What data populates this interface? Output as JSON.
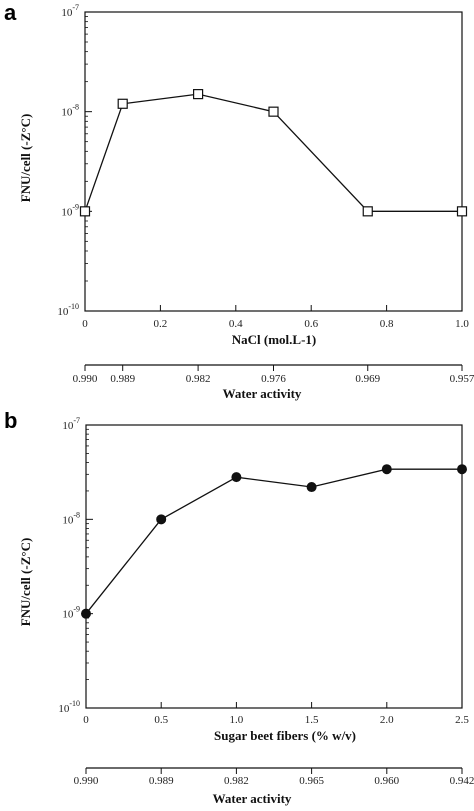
{
  "chart_data": [
    {
      "panel": "a",
      "type": "line",
      "marker": "open-square",
      "ylabel": "FNU/cell (-Z°C)",
      "xlabel": "NaCl (mol.L-1)",
      "yscale": "log",
      "ylim": [
        1e-10,
        1e-07
      ],
      "y_ticks": [
        "-7",
        "-8",
        "-9",
        "-10"
      ],
      "xlim": [
        0,
        1.0
      ],
      "x_ticks": [
        "0",
        "0.2",
        "0.4",
        "0.6",
        "0.8",
        "1.0"
      ],
      "x": [
        0.0,
        0.1,
        0.3,
        0.5,
        0.75,
        1.0
      ],
      "y": [
        1e-09,
        1.2e-08,
        1.5e-08,
        1e-08,
        1e-09,
        1e-09
      ],
      "secondary_axis": {
        "label": "Water activity",
        "ticks": [
          "0.990",
          "0.989",
          "0.982",
          "0.976",
          "0.969",
          "0.957"
        ],
        "positions": [
          0.0,
          0.1,
          0.3,
          0.5,
          0.75,
          1.0
        ]
      }
    },
    {
      "panel": "b",
      "type": "line",
      "marker": "filled-circle",
      "ylabel": "FNU/cell (-Z°C)",
      "xlabel": "Sugar beet fibers (% w/v)",
      "yscale": "log",
      "ylim": [
        1e-10,
        1e-07
      ],
      "y_ticks": [
        "-7",
        "-8",
        "-9",
        "-10"
      ],
      "xlim": [
        0,
        2.5
      ],
      "x_ticks": [
        "0",
        "0.5",
        "1.0",
        "1.5",
        "2.0",
        "2.5"
      ],
      "x": [
        0.0,
        0.5,
        1.0,
        1.5,
        2.0,
        2.5
      ],
      "y": [
        1e-09,
        1e-08,
        2.8e-08,
        2.2e-08,
        3.4e-08,
        3.4e-08
      ],
      "secondary_axis": {
        "label": "Water activity",
        "ticks": [
          "0.990",
          "0.989",
          "0.982",
          "0.965",
          "0.960",
          "0.942"
        ],
        "positions": [
          0.0,
          0.5,
          1.0,
          1.5,
          2.0,
          2.5
        ]
      }
    }
  ]
}
